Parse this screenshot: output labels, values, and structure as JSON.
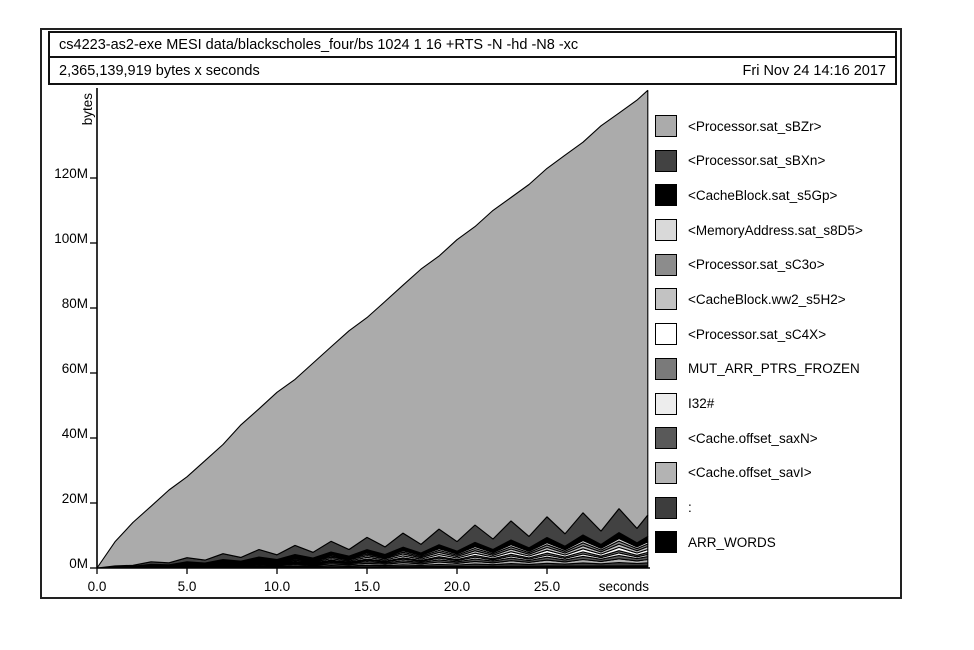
{
  "header": {
    "title": "cs4223-as2-exe MESI data/blackscholes_four/bs 1024 1 16 +RTS -N -hd -N8 -xc"
  },
  "summary": {
    "left": "2,365,139,919 bytes x seconds",
    "right": "Fri Nov 24 14:16 2017"
  },
  "axes": {
    "y_label": "bytes",
    "x_label": "seconds",
    "y_ticks": [
      {
        "label": "0M",
        "value": 0
      },
      {
        "label": "20M",
        "value": 20
      },
      {
        "label": "40M",
        "value": 40
      },
      {
        "label": "60M",
        "value": 60
      },
      {
        "label": "80M",
        "value": 80
      },
      {
        "label": "100M",
        "value": 100
      },
      {
        "label": "120M",
        "value": 120
      }
    ],
    "x_ticks": [
      {
        "label": "0.0",
        "value": 0
      },
      {
        "label": "5.0",
        "value": 5
      },
      {
        "label": "10.0",
        "value": 10
      },
      {
        "label": "15.0",
        "value": 15
      },
      {
        "label": "20.0",
        "value": 20
      },
      {
        "label": "25.0",
        "value": 25
      }
    ]
  },
  "colors": {
    "axis": "#000000",
    "band_outline": "#000000"
  },
  "chart_data": {
    "type": "area",
    "stacked": true,
    "title": "cs4223-as2-exe MESI data/blackscholes_four/bs 1024 1 16 +RTS -N -hd -N8 -xc",
    "xlabel": "seconds",
    "ylabel": "bytes",
    "xlim": [
      0,
      30.6
    ],
    "ylim": [
      0,
      147.7
    ],
    "y_unit": "MB",
    "legend_position": "right",
    "grid": false,
    "x": [
      0,
      1,
      2,
      3,
      4,
      5,
      6,
      7,
      8,
      9,
      10,
      11,
      12,
      13,
      14,
      15,
      16,
      17,
      18,
      19,
      20,
      21,
      22,
      23,
      24,
      25,
      26,
      27,
      28,
      29,
      30,
      30.6
    ],
    "series": [
      {
        "name": "ARR_WORDS",
        "color": "#000000",
        "values": [
          0,
          0.02,
          0.05,
          0.07,
          0.09,
          0.11,
          0.14,
          0.16,
          0.18,
          0.21,
          0.23,
          0.25,
          0.27,
          0.3,
          0.32,
          0.34,
          0.37,
          0.39,
          0.41,
          0.43,
          0.46,
          0.48,
          0.5,
          0.53,
          0.55,
          0.57,
          0.59,
          0.62,
          0.64,
          0.66,
          0.69,
          0.7
        ]
      },
      {
        "name": ":",
        "color": "#3d3d3d",
        "values": [
          0,
          0.04,
          0.05,
          0.11,
          0.09,
          0.18,
          0.14,
          0.25,
          0.19,
          0.32,
          0.24,
          0.39,
          0.28,
          0.46,
          0.33,
          0.53,
          0.38,
          0.6,
          0.42,
          0.67,
          0.47,
          0.74,
          0.52,
          0.81,
          0.56,
          0.88,
          0.61,
          0.95,
          0.66,
          1.02,
          0.71,
          0.9
        ]
      },
      {
        "name": "<Cache.offset_savI>",
        "color": "#b3b3b3",
        "values": [
          0,
          0.04,
          0.05,
          0.12,
          0.1,
          0.2,
          0.16,
          0.27,
          0.21,
          0.35,
          0.26,
          0.43,
          0.31,
          0.51,
          0.37,
          0.59,
          0.42,
          0.67,
          0.47,
          0.75,
          0.52,
          0.82,
          0.58,
          0.9,
          0.63,
          0.98,
          0.68,
          1.06,
          0.73,
          1.14,
          0.78,
          1.0
        ]
      },
      {
        "name": "<Cache.offset_saxN>",
        "color": "#595959",
        "values": [
          0,
          0.04,
          0.05,
          0.11,
          0.09,
          0.18,
          0.14,
          0.25,
          0.19,
          0.32,
          0.24,
          0.39,
          0.28,
          0.46,
          0.33,
          0.53,
          0.38,
          0.6,
          0.42,
          0.67,
          0.47,
          0.74,
          0.52,
          0.81,
          0.56,
          0.88,
          0.61,
          0.95,
          0.66,
          1.02,
          0.71,
          0.9
        ]
      },
      {
        "name": "I32#",
        "color": "#ededed",
        "values": [
          0,
          0.03,
          0.04,
          0.08,
          0.07,
          0.14,
          0.11,
          0.19,
          0.15,
          0.25,
          0.18,
          0.3,
          0.22,
          0.36,
          0.26,
          0.41,
          0.29,
          0.47,
          0.33,
          0.52,
          0.37,
          0.58,
          0.4,
          0.63,
          0.44,
          0.69,
          0.48,
          0.74,
          0.51,
          0.8,
          0.55,
          0.7
        ]
      },
      {
        "name": "MUT_ARR_PTRS_FROZEN",
        "color": "#7a7a7a",
        "values": [
          0,
          0.02,
          0.03,
          0.07,
          0.06,
          0.12,
          0.09,
          0.16,
          0.13,
          0.21,
          0.16,
          0.26,
          0.19,
          0.31,
          0.22,
          0.35,
          0.25,
          0.4,
          0.28,
          0.45,
          0.31,
          0.49,
          0.35,
          0.54,
          0.38,
          0.59,
          0.41,
          0.64,
          0.44,
          0.68,
          0.47,
          0.6
        ]
      },
      {
        "name": "<Processor.sat_sC4X>",
        "color": "#ffffff",
        "values": [
          0,
          0.04,
          0.05,
          0.11,
          0.09,
          0.18,
          0.14,
          0.25,
          0.19,
          0.32,
          0.24,
          0.39,
          0.28,
          0.46,
          0.33,
          0.53,
          0.38,
          0.6,
          0.42,
          0.67,
          0.47,
          0.74,
          0.52,
          0.81,
          0.56,
          0.88,
          0.61,
          0.95,
          0.66,
          1.02,
          0.71,
          0.9
        ]
      },
      {
        "name": "<CacheBlock.ww2_s5H2>",
        "color": "#c2c2c2",
        "values": [
          0,
          0.04,
          0.05,
          0.11,
          0.09,
          0.18,
          0.14,
          0.25,
          0.19,
          0.32,
          0.24,
          0.39,
          0.28,
          0.46,
          0.33,
          0.53,
          0.38,
          0.6,
          0.42,
          0.67,
          0.47,
          0.74,
          0.52,
          0.81,
          0.56,
          0.88,
          0.61,
          0.95,
          0.66,
          1.02,
          0.71,
          0.9
        ]
      },
      {
        "name": "<Processor.sat_sC3o>",
        "color": "#8c8c8c",
        "values": [
          0,
          0.03,
          0.04,
          0.09,
          0.08,
          0.16,
          0.13,
          0.22,
          0.17,
          0.28,
          0.21,
          0.35,
          0.25,
          0.41,
          0.29,
          0.47,
          0.33,
          0.53,
          0.38,
          0.6,
          0.42,
          0.66,
          0.46,
          0.72,
          0.5,
          0.78,
          0.54,
          0.85,
          0.59,
          0.91,
          0.63,
          0.8
        ]
      },
      {
        "name": "<MemoryAddress.sat_s8D5>",
        "color": "#d9d9d9",
        "values": [
          0,
          0.03,
          0.04,
          0.08,
          0.07,
          0.14,
          0.11,
          0.19,
          0.15,
          0.25,
          0.18,
          0.3,
          0.22,
          0.36,
          0.26,
          0.41,
          0.29,
          0.47,
          0.33,
          0.52,
          0.37,
          0.58,
          0.4,
          0.63,
          0.44,
          0.69,
          0.48,
          0.74,
          0.51,
          0.8,
          0.55,
          0.7
        ]
      },
      {
        "name": "<CacheBlock.sat_s5Gp>",
        "color": "#000000",
        "values": [
          0,
          0.06,
          0.08,
          0.19,
          0.17,
          0.31,
          0.25,
          0.44,
          0.33,
          0.56,
          0.42,
          0.69,
          0.5,
          0.82,
          0.59,
          0.94,
          0.67,
          1.07,
          0.75,
          1.19,
          0.84,
          1.32,
          0.92,
          1.44,
          1.0,
          1.57,
          1.09,
          1.69,
          1.17,
          1.82,
          1.25,
          1.6
        ]
      },
      {
        "name": "<Processor.sat_sBXn>",
        "color": "#424242",
        "values": [
          0,
          0.26,
          0.29,
          0.76,
          0.59,
          1.27,
          0.88,
          1.78,
          1.18,
          2.29,
          1.47,
          2.8,
          1.76,
          3.31,
          2.06,
          3.82,
          2.35,
          4.33,
          2.65,
          4.84,
          2.94,
          5.35,
          3.24,
          5.86,
          3.53,
          6.37,
          3.82,
          6.88,
          4.12,
          7.39,
          4.41,
          6.6
        ]
      },
      {
        "name": "<Processor.sat_sBZr>",
        "color": "#ababab",
        "values": [
          0,
          7.4,
          13.2,
          17.1,
          22.4,
          24.9,
          30.6,
          33.6,
          40.8,
          43.3,
          50.0,
          51.1,
          58.2,
          59.8,
          67.3,
          67.6,
          75.5,
          76.3,
          84.7,
          84.0,
          92.9,
          91.8,
          101.1,
          99.5,
          108.3,
          107.2,
          116.5,
          114.0,
          124.7,
          121.7,
          131.8,
          130.7
        ]
      }
    ]
  }
}
